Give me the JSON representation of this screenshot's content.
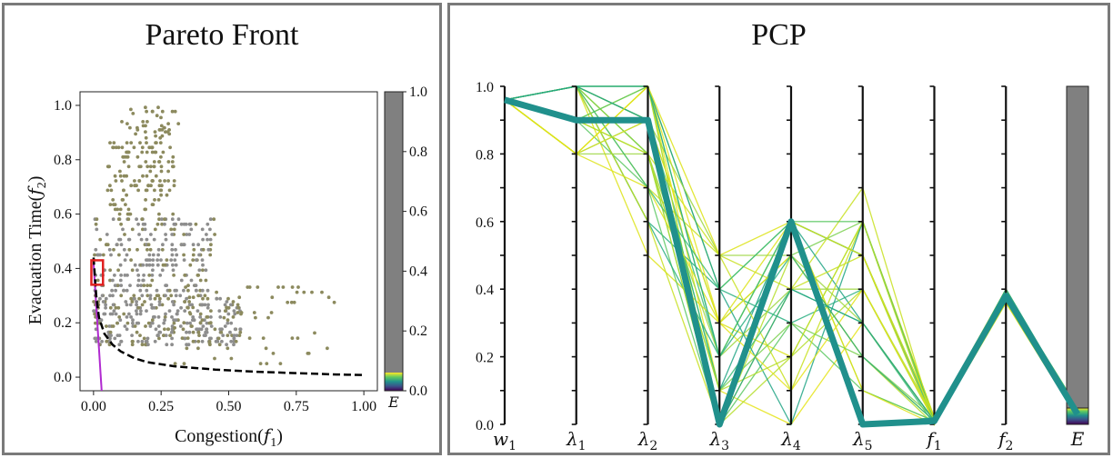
{
  "chart_data": [
    {
      "type": "scatter",
      "title": "Pareto Front",
      "xlabel": "Congestion(f1)",
      "ylabel": "Evacuation Time(f2)",
      "xlabel_base": "Congestion(",
      "xlabel_var": "f",
      "xlabel_sub": "1",
      "ylabel_base": "Evacuation Time(",
      "ylabel_var": "f",
      "ylabel_sub": "2",
      "xlim": [
        -0.05,
        1.05
      ],
      "ylim": [
        -0.05,
        1.05
      ],
      "x_ticks": [
        0.0,
        0.25,
        0.5,
        0.75,
        1.0
      ],
      "x_tick_labels": [
        "0.00",
        "0.25",
        "0.50",
        "0.75",
        "1.00"
      ],
      "y_ticks": [
        0.0,
        0.2,
        0.4,
        0.6,
        0.8,
        1.0
      ],
      "y_tick_labels": [
        "0.0",
        "0.2",
        "0.4",
        "0.6",
        "0.8",
        "1.0"
      ],
      "colors": {
        "points": "#8c8a5e",
        "dense": "#8e8e8e",
        "front": "#000000",
        "path": "#b02ad0",
        "highlight": "#e02020"
      },
      "scatter_clusters": [
        {
          "x_range": [
            0.1,
            0.32
          ],
          "y_range": [
            0.88,
            1.0
          ],
          "count": 40
        },
        {
          "x_range": [
            0.05,
            0.3
          ],
          "y_range": [
            0.6,
            0.88
          ],
          "count": 130
        },
        {
          "x_range": [
            0.0,
            0.45
          ],
          "y_range": [
            0.3,
            0.6
          ],
          "count": 260
        },
        {
          "x_range": [
            0.0,
            0.55
          ],
          "y_range": [
            0.12,
            0.3
          ],
          "count": 320
        },
        {
          "x_range": [
            0.3,
            0.9
          ],
          "y_range": [
            0.05,
            0.35
          ],
          "count": 60
        }
      ],
      "pareto_front": {
        "x": [
          0.0,
          0.01,
          0.02,
          0.04,
          0.07,
          0.1,
          0.15,
          0.2,
          0.3,
          0.45,
          0.6,
          0.75,
          0.9,
          1.0
        ],
        "y": [
          0.44,
          0.3,
          0.22,
          0.16,
          0.12,
          0.095,
          0.07,
          0.055,
          0.04,
          0.028,
          0.02,
          0.015,
          0.01,
          0.008
        ]
      },
      "highlight_box": {
        "x": [
          -0.008,
          0.035
        ],
        "y": [
          0.34,
          0.43
        ]
      },
      "colorbar": {
        "label": "E",
        "ticks": [
          0.0,
          0.2,
          0.4,
          0.6,
          0.8,
          1.0
        ],
        "tick_labels": [
          "0.0",
          "0.2",
          "0.4",
          "0.6",
          "0.8",
          "1.0"
        ]
      }
    },
    {
      "type": "parallel_coordinates",
      "title": "PCP",
      "axes": [
        "w1",
        "λ1",
        "λ2",
        "λ3",
        "λ4",
        "λ5",
        "f1",
        "f2",
        "E"
      ],
      "axis_labels": [
        {
          "base": "w",
          "sub": "1"
        },
        {
          "base": "λ",
          "sub": "1"
        },
        {
          "base": "λ",
          "sub": "2"
        },
        {
          "base": "λ",
          "sub": "3"
        },
        {
          "base": "λ",
          "sub": "4"
        },
        {
          "base": "λ",
          "sub": "5"
        },
        {
          "base": "f",
          "sub": "1"
        },
        {
          "base": "f",
          "sub": "2"
        },
        {
          "base": "E",
          "sub": ""
        }
      ],
      "ylim": [
        0.0,
        1.0
      ],
      "y_ticks": [
        0.0,
        0.2,
        0.4,
        0.6,
        0.8,
        1.0
      ],
      "y_tick_labels": [
        "0.0",
        "0.2",
        "0.4",
        "0.6",
        "0.8",
        "1.0"
      ],
      "highlighted_line": [
        0.96,
        0.9,
        0.9,
        0.0,
        0.6,
        0.0,
        0.01,
        0.38,
        0.03
      ],
      "highlight_color": "#20908c",
      "lines": [
        [
          0.96,
          1.0,
          1.0,
          0.0,
          0.6,
          0.1,
          0.01,
          0.39,
          0.02
        ],
        [
          0.96,
          1.0,
          0.9,
          0.3,
          0.5,
          0.6,
          0.02,
          0.37,
          0.03
        ],
        [
          0.96,
          1.0,
          0.8,
          0.0,
          0.6,
          0.0,
          0.01,
          0.4,
          0.04
        ],
        [
          0.96,
          1.0,
          0.7,
          0.5,
          0.4,
          0.7,
          0.0,
          0.36,
          0.05
        ],
        [
          0.96,
          0.8,
          1.0,
          0.1,
          0.0,
          0.3,
          0.01,
          0.39,
          0.03
        ],
        [
          0.96,
          0.8,
          0.9,
          0.2,
          0.6,
          0.5,
          0.02,
          0.38,
          0.02
        ],
        [
          0.96,
          1.0,
          0.6,
          0.4,
          0.3,
          0.4,
          0.01,
          0.37,
          0.04
        ],
        [
          0.96,
          0.9,
          1.0,
          0.0,
          0.5,
          0.2,
          0.0,
          0.4,
          0.03
        ],
        [
          0.96,
          1.0,
          0.9,
          0.1,
          0.6,
          0.3,
          0.01,
          0.38,
          0.02
        ],
        [
          0.96,
          1.0,
          0.5,
          0.3,
          0.2,
          0.6,
          0.02,
          0.36,
          0.05
        ],
        [
          0.96,
          0.8,
          0.8,
          0.2,
          0.4,
          0.4,
          0.01,
          0.39,
          0.03
        ],
        [
          0.96,
          1.0,
          1.0,
          0.4,
          0.6,
          0.5,
          0.0,
          0.38,
          0.04
        ],
        [
          0.96,
          0.9,
          0.7,
          0.0,
          0.3,
          0.1,
          0.01,
          0.37,
          0.02
        ],
        [
          0.96,
          1.0,
          0.8,
          0.5,
          0.1,
          0.6,
          0.02,
          0.4,
          0.03
        ],
        [
          0.96,
          0.8,
          1.0,
          0.3,
          0.5,
          0.2,
          0.01,
          0.36,
          0.05
        ],
        [
          0.96,
          1.0,
          0.9,
          0.1,
          0.4,
          0.3,
          0.0,
          0.39,
          0.04
        ],
        [
          0.96,
          1.0,
          0.6,
          0.2,
          0.6,
          0.5,
          0.01,
          0.38,
          0.02
        ],
        [
          0.96,
          0.9,
          0.8,
          0.0,
          0.2,
          0.4,
          0.02,
          0.37,
          0.03
        ],
        [
          0.96,
          1.0,
          1.0,
          0.4,
          0.0,
          0.6,
          0.01,
          0.4,
          0.04
        ],
        [
          0.96,
          0.8,
          0.7,
          0.3,
          0.6,
          0.1,
          0.0,
          0.36,
          0.02
        ],
        [
          0.96,
          1.0,
          0.9,
          0.5,
          0.5,
          0.3,
          0.01,
          0.39,
          0.05
        ],
        [
          0.96,
          1.0,
          0.8,
          0.1,
          0.3,
          0.2,
          0.02,
          0.38,
          0.03
        ],
        [
          0.96,
          0.9,
          1.0,
          0.2,
          0.6,
          0.6,
          0.01,
          0.37,
          0.04
        ],
        [
          0.96,
          1.0,
          0.6,
          0.0,
          0.4,
          0.5,
          0.0,
          0.4,
          0.02
        ],
        [
          0.96,
          0.8,
          0.9,
          0.3,
          0.1,
          0.4,
          0.01,
          0.36,
          0.03
        ],
        [
          0.96,
          1.0,
          0.7,
          0.4,
          0.6,
          0.0,
          0.02,
          0.39,
          0.05
        ],
        [
          0.96,
          1.0,
          1.0,
          0.2,
          0.5,
          0.2,
          0.01,
          0.38,
          0.02
        ],
        [
          0.96,
          0.9,
          0.8,
          0.1,
          0.2,
          0.6,
          0.0,
          0.37,
          0.04
        ],
        [
          0.96,
          1.0,
          0.9,
          0.0,
          0.4,
          0.3,
          0.01,
          0.4,
          0.03
        ],
        [
          0.96,
          0.8,
          1.0,
          0.5,
          0.6,
          0.5,
          0.02,
          0.36,
          0.02
        ]
      ],
      "line_palette": [
        "#9cd63f",
        "#7bd151",
        "#5cc863",
        "#c8e020",
        "#e5e419",
        "#3cbc75",
        "#28ae80",
        "#b5de2b",
        "#21a585",
        "#dde318"
      ],
      "colorbar": {
        "label": "E"
      }
    }
  ]
}
